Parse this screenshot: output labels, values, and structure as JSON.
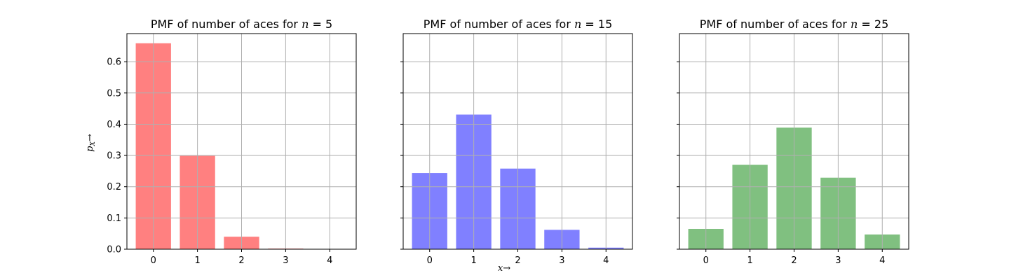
{
  "chart_data": [
    {
      "type": "bar",
      "title": "PMF of number of aces for n = 5",
      "title_parts": {
        "prefix": "PMF of number of aces for ",
        "var": "n",
        "eq": " = ",
        "value": "5"
      },
      "categories": [
        "0",
        "1",
        "2",
        "3",
        "4"
      ],
      "x": [
        0,
        1,
        2,
        3,
        4
      ],
      "values": [
        0.659,
        0.299,
        0.04,
        0.002,
        0.0
      ],
      "color": "#ff8080",
      "ylim": [
        0,
        0.69
      ],
      "yticks": [
        0.0,
        0.1,
        0.2,
        0.3,
        0.4,
        0.5,
        0.6
      ],
      "ytick_labels": [
        "0.0",
        "0.1",
        "0.2",
        "0.3",
        "0.4",
        "0.5",
        "0.6"
      ],
      "show_ytick_labels": true,
      "grid": true
    },
    {
      "type": "bar",
      "title": "PMF of number of aces for n = 15",
      "title_parts": {
        "prefix": "PMF of number of aces for ",
        "var": "n",
        "eq": " = ",
        "value": "15"
      },
      "categories": [
        "0",
        "1",
        "2",
        "3",
        "4"
      ],
      "x": [
        0,
        1,
        2,
        3,
        4
      ],
      "values": [
        0.244,
        0.431,
        0.258,
        0.062,
        0.005
      ],
      "color": "#8080ff",
      "ylim": [
        0,
        0.69
      ],
      "yticks": [
        0.0,
        0.1,
        0.2,
        0.3,
        0.4,
        0.5,
        0.6
      ],
      "show_ytick_labels": false,
      "grid": true
    },
    {
      "type": "bar",
      "title": "PMF of number of aces for n = 25",
      "title_parts": {
        "prefix": "PMF of number of aces for ",
        "var": "n",
        "eq": " = ",
        "value": "25"
      },
      "categories": [
        "0",
        "1",
        "2",
        "3",
        "4"
      ],
      "x": [
        0,
        1,
        2,
        3,
        4
      ],
      "values": [
        0.065,
        0.27,
        0.389,
        0.229,
        0.047
      ],
      "color": "#80c080",
      "ylim": [
        0,
        0.69
      ],
      "yticks": [
        0.0,
        0.1,
        0.2,
        0.3,
        0.4,
        0.5,
        0.6
      ],
      "show_ytick_labels": false,
      "grid": true
    }
  ],
  "labels": {
    "ylabel": "p_X →",
    "ylabel_main": "p",
    "ylabel_sub": "X",
    "ylabel_arrow": "→",
    "xlabel": "x →",
    "xlabel_main": "x",
    "xlabel_arrow": "→"
  }
}
